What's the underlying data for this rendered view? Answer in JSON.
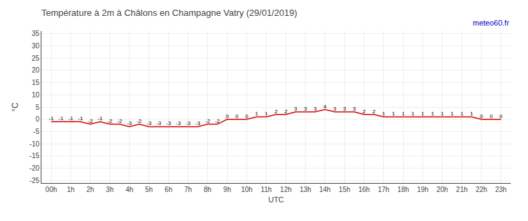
{
  "chart_data": {
    "type": "line",
    "title": "Température à 2m à Châlons en Champagne Vatry (29/01/2019)",
    "ylabel": "°C",
    "xlabel": "UTC",
    "annotations": [
      {
        "text": "meteo60.fr",
        "color": "#0000cc"
      }
    ],
    "x": [
      0,
      0.5,
      1,
      1.5,
      2,
      2.5,
      3,
      3.5,
      4,
      4.5,
      5,
      5.5,
      6,
      6.5,
      7,
      7.5,
      8,
      8.5,
      9,
      9.5,
      10,
      10.5,
      11,
      11.5,
      12,
      12.5,
      13,
      13.5,
      14,
      14.5,
      15,
      15.5,
      16,
      16.5,
      17,
      17.5,
      18,
      18.5,
      19,
      19.5,
      20,
      20.5,
      21,
      21.5,
      22,
      22.5,
      23
    ],
    "values": [
      -1,
      -1,
      -1,
      -1,
      -2,
      -1,
      -2,
      -2,
      -3,
      -2,
      -3,
      -3,
      -3,
      -3,
      -3,
      -3,
      -2,
      -2,
      0,
      0,
      0,
      1,
      1,
      2,
      2,
      3,
      3,
      3,
      4,
      3,
      3,
      3,
      2,
      2,
      1,
      1,
      1,
      1,
      1,
      1,
      1,
      1,
      1,
      1,
      0,
      0,
      0
    ],
    "color": "#dd0000",
    "xlim": [
      -0.5,
      23.5
    ],
    "xticks": [
      {
        "value": 0,
        "label": "00h"
      },
      {
        "value": 1,
        "label": "1h"
      },
      {
        "value": 2,
        "label": "2h"
      },
      {
        "value": 3,
        "label": "3h"
      },
      {
        "value": 4,
        "label": "4h"
      },
      {
        "value": 5,
        "label": "5h"
      },
      {
        "value": 6,
        "label": "6h"
      },
      {
        "value": 7,
        "label": "7h"
      },
      {
        "value": 8,
        "label": "8h"
      },
      {
        "value": 9,
        "label": "9h"
      },
      {
        "value": 10,
        "label": "10h"
      },
      {
        "value": 11,
        "label": "11h"
      },
      {
        "value": 12,
        "label": "12h"
      },
      {
        "value": 13,
        "label": "13h"
      },
      {
        "value": 14,
        "label": "14h"
      },
      {
        "value": 15,
        "label": "15h"
      },
      {
        "value": 16,
        "label": "16h"
      },
      {
        "value": 17,
        "label": "17h"
      },
      {
        "value": 18,
        "label": "18h"
      },
      {
        "value": 19,
        "label": "19h"
      },
      {
        "value": 20,
        "label": "20h"
      },
      {
        "value": 21,
        "label": "21h"
      },
      {
        "value": 22,
        "label": "22h"
      },
      {
        "value": 23,
        "label": "23h"
      }
    ],
    "ylim": [
      -26,
      36
    ],
    "yticks": [
      -25,
      -20,
      -15,
      -10,
      -5,
      0,
      5,
      10,
      15,
      20,
      25,
      30,
      35
    ],
    "grid": true,
    "data_labels": true
  }
}
